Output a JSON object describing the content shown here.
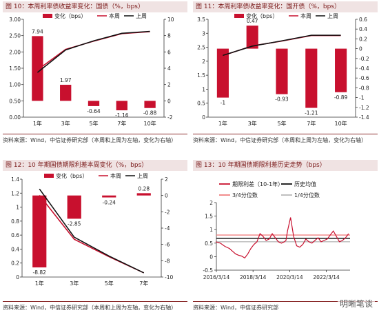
{
  "colors": {
    "red": "#c8102e",
    "black": "#111111",
    "pink": "#f08080",
    "gray": "#b8b8b8",
    "title_bg": "#f0e3e3"
  },
  "watermark": "明晰笔谈",
  "chart_data": [
    {
      "type": "bar",
      "panel_title": "图 10：本周利率债收益率变化：国债（%，bps）",
      "source": "资料来源：Wind，中信证券研究部（本周和上周为左轴，变化为右轴）",
      "categories": [
        "1年",
        "3年",
        "5年",
        "7年",
        "10年"
      ],
      "series": [
        {
          "name": "变化（bps）",
          "kind": "bar",
          "axis": "right",
          "values": [
            7.94,
            1.97,
            -0.64,
            -1.16,
            -0.88
          ]
        },
        {
          "name": "本周",
          "kind": "line",
          "axis": "left",
          "values": [
            1.45,
            2.08,
            2.33,
            2.56,
            2.62
          ]
        },
        {
          "name": "上周",
          "kind": "line",
          "axis": "left",
          "values": [
            1.37,
            2.06,
            2.34,
            2.57,
            2.63
          ]
        }
      ],
      "left_axis": {
        "min": 0,
        "max": 3.0,
        "ticks": [
          "0.00",
          "0.50",
          "1.00",
          "1.50",
          "2.00",
          "2.50",
          "3.00"
        ]
      },
      "right_axis": {
        "min": -2,
        "max": 10,
        "ticks": [
          "-2",
          "0",
          "2",
          "4",
          "6",
          "8",
          "10"
        ]
      },
      "data_labels": [
        "7.94",
        "1.97",
        "-0.64",
        "-1.16",
        "-0.88"
      ],
      "legend_position": "top"
    },
    {
      "type": "bar",
      "panel_title": "图 11：本周利率债收益率变化：国开债（%，bps）",
      "source": "资料来源：Wind，中信证券研究部（本周和上周为左轴，变化为右轴）",
      "categories": [
        "1年",
        "3年",
        "5年",
        "7年",
        "10年"
      ],
      "series": [
        {
          "name": "变化（bps）",
          "kind": "bar",
          "axis": "right",
          "values": [
            -1,
            0.47,
            -0.93,
            -1.21,
            -0.89
          ]
        },
        {
          "name": "本周",
          "kind": "line",
          "axis": "left",
          "values": [
            2.2,
            2.55,
            2.72,
            2.92,
            2.92
          ]
        },
        {
          "name": "上周",
          "kind": "line",
          "axis": "left",
          "values": [
            2.21,
            2.54,
            2.73,
            2.93,
            2.93
          ]
        }
      ],
      "left_axis": {
        "min": 0,
        "max": 3.5,
        "ticks": [
          "0",
          "0.5",
          "1",
          "1.5",
          "2",
          "2.5",
          "3",
          "3.5"
        ]
      },
      "right_axis": {
        "min": -1.4,
        "max": 0.6,
        "ticks": [
          "-1.4",
          "-1.2",
          "-1",
          "-0.8",
          "-0.6",
          "-0.4",
          "-0.2",
          "0",
          "0.2",
          "0.4",
          "0.6"
        ]
      },
      "data_labels": [
        "-1",
        "0.47",
        "-0.93",
        "-1.21",
        "-0.89"
      ],
      "legend_position": "top"
    },
    {
      "type": "bar",
      "panel_title": "图 12：10 年期国债期限利差本周变化（%，bps）",
      "source": "资料来源：Wind，中信证券研究部（本周和上周为左轴，变化为右轴）",
      "categories": [
        "1年",
        "3年",
        "5年",
        "7年"
      ],
      "series": [
        {
          "name": "变化（bps）",
          "kind": "bar",
          "axis": "right",
          "values": [
            -8.82,
            -2.85,
            -0.24,
            0.28
          ]
        },
        {
          "name": "本周",
          "kind": "line",
          "axis": "left",
          "values": [
            1.17,
            0.54,
            0.29,
            0.06
          ]
        },
        {
          "name": "上周",
          "kind": "line",
          "axis": "left",
          "values": [
            1.26,
            0.57,
            0.3,
            0.06
          ]
        }
      ],
      "left_axis": {
        "min": 0,
        "max": 1.4,
        "ticks": [
          "0",
          "0.2",
          "0.4",
          "0.6",
          "0.8",
          "1",
          "1.2",
          "1.4"
        ]
      },
      "right_axis": {
        "min": -10,
        "max": 2,
        "ticks": [
          "-10",
          "-8",
          "-6",
          "-4",
          "-2",
          "0",
          "2"
        ]
      },
      "data_labels": [
        "-8.82",
        "-2.85",
        "-0.24",
        "0.28"
      ],
      "legend_position": "top"
    },
    {
      "type": "line",
      "panel_title": "图 13：10 年期国债期限利差历史走势（bps）",
      "source": "资料来源：Wind，中信证券研究部",
      "x_ticks": [
        "2016/3/14",
        "2018/3/14",
        "2020/3/14",
        "2022/3/14"
      ],
      "x_range": [
        "2016-03-14",
        "2023-06-30"
      ],
      "y_axis": {
        "min": -0.5,
        "max": 2.0,
        "ticks": [
          "-0.5",
          "0",
          "0.5",
          "1",
          "1.5",
          "2"
        ]
      },
      "series": [
        {
          "name": "期限利差（10-1年）",
          "kind": "line",
          "color": "#c8102e",
          "points": [
            [
              "2016-03",
              0.55
            ],
            [
              "2016-06",
              0.5
            ],
            [
              "2016-09",
              0.38
            ],
            [
              "2016-12",
              0.3
            ],
            [
              "2017-02",
              0.2
            ],
            [
              "2017-04",
              0.1
            ],
            [
              "2017-06",
              0.05
            ],
            [
              "2017-08",
              0.02
            ],
            [
              "2017-10",
              -0.05
            ],
            [
              "2017-12",
              0.1
            ],
            [
              "2018-02",
              0.3
            ],
            [
              "2018-04",
              0.45
            ],
            [
              "2018-06",
              0.55
            ],
            [
              "2018-08",
              0.85
            ],
            [
              "2018-10",
              0.75
            ],
            [
              "2018-12",
              0.6
            ],
            [
              "2019-02",
              0.65
            ],
            [
              "2019-04",
              0.85
            ],
            [
              "2019-06",
              0.7
            ],
            [
              "2019-08",
              0.55
            ],
            [
              "2019-10",
              0.5
            ],
            [
              "2019-12",
              0.55
            ],
            [
              "2020-01",
              0.6
            ],
            [
              "2020-02",
              0.95
            ],
            [
              "2020-03",
              1.2
            ],
            [
              "2020-04",
              1.45
            ],
            [
              "2020-05",
              1.1
            ],
            [
              "2020-06",
              0.75
            ],
            [
              "2020-08",
              0.4
            ],
            [
              "2020-10",
              0.35
            ],
            [
              "2020-12",
              0.45
            ],
            [
              "2021-02",
              0.65
            ],
            [
              "2021-04",
              0.55
            ],
            [
              "2021-06",
              0.5
            ],
            [
              "2021-08",
              0.6
            ],
            [
              "2021-10",
              0.7
            ],
            [
              "2021-12",
              0.55
            ],
            [
              "2022-02",
              0.6
            ],
            [
              "2022-04",
              0.65
            ],
            [
              "2022-06",
              0.8
            ],
            [
              "2022-08",
              0.95
            ],
            [
              "2022-10",
              0.75
            ],
            [
              "2022-12",
              0.55
            ],
            [
              "2023-02",
              0.6
            ],
            [
              "2023-04",
              0.7
            ],
            [
              "2023-06",
              0.85
            ]
          ]
        },
        {
          "name": "历史均值",
          "kind": "hline",
          "color": "#111111",
          "value": 0.68
        },
        {
          "name": "3/4分位数",
          "kind": "hline",
          "color": "#f08080",
          "value": 0.8
        },
        {
          "name": "1/4分位数",
          "kind": "hline",
          "color": "#b8b8b8",
          "value": 0.55
        }
      ],
      "legend_position": "top"
    }
  ]
}
